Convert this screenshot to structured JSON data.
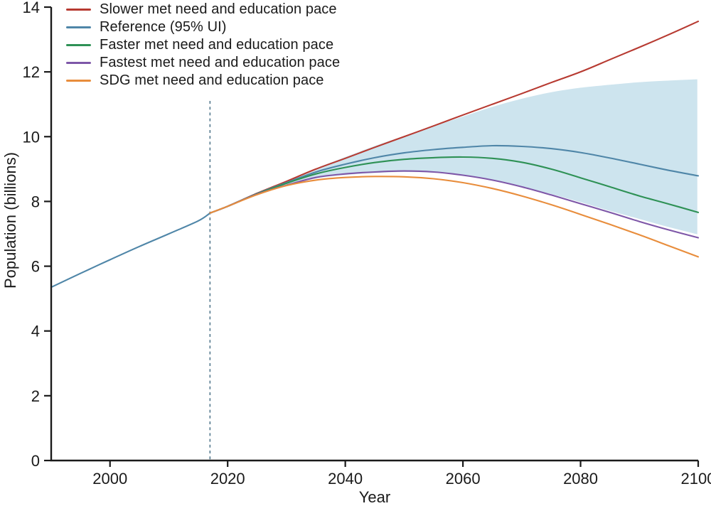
{
  "chart_data": {
    "type": "line",
    "title": "",
    "xlabel": "Year",
    "ylabel": "Population (billions)",
    "xlim": [
      1990,
      2100
    ],
    "ylim": [
      0,
      14
    ],
    "xticks": [
      2000,
      2020,
      2040,
      2060,
      2080,
      2100
    ],
    "yticks": [
      0,
      2,
      4,
      6,
      8,
      10,
      12,
      14
    ],
    "grid": false,
    "legend_position": "top-left",
    "axis_color": "#1a1a1a",
    "forecast_divider": {
      "year": 2017,
      "style": "dashed",
      "color": "#5b7e92"
    },
    "historical": {
      "color": "#4f86a8",
      "x": [
        1990,
        1995,
        2000,
        2005,
        2010,
        2015,
        2017
      ],
      "values": [
        5.35,
        5.78,
        6.2,
        6.61,
        7.0,
        7.4,
        7.64
      ]
    },
    "forecast_x": [
      2017,
      2020,
      2025,
      2030,
      2035,
      2040,
      2045,
      2050,
      2055,
      2060,
      2065,
      2070,
      2075,
      2080,
      2085,
      2090,
      2095,
      2100
    ],
    "uncertainty_band": {
      "label": "95% UI",
      "color": "#cde4ee",
      "upper": [
        7.64,
        7.86,
        8.27,
        8.66,
        9.05,
        9.4,
        9.74,
        10.05,
        10.35,
        10.65,
        10.95,
        11.2,
        11.4,
        11.54,
        11.63,
        11.71,
        11.76,
        11.8
      ],
      "lower": [
        7.64,
        7.84,
        8.18,
        8.46,
        8.68,
        8.79,
        8.85,
        8.88,
        8.86,
        8.78,
        8.63,
        8.42,
        8.2,
        7.95,
        7.68,
        7.43,
        7.18,
        6.95
      ]
    },
    "series": [
      {
        "name": "Slower met need and education pace",
        "color": "#b73a31",
        "values": [
          7.64,
          7.85,
          8.25,
          8.62,
          9.0,
          9.33,
          9.67,
          10.0,
          10.33,
          10.67,
          11.0,
          11.33,
          11.67,
          12.0,
          12.38,
          12.76,
          13.15,
          13.56
        ]
      },
      {
        "name": "Reference (95% UI)",
        "color": "#4f86a8",
        "values": [
          7.64,
          7.85,
          8.24,
          8.58,
          8.91,
          9.15,
          9.35,
          9.5,
          9.6,
          9.67,
          9.72,
          9.7,
          9.63,
          9.51,
          9.34,
          9.15,
          8.96,
          8.79
        ]
      },
      {
        "name": "Faster met need and education pace",
        "color": "#2e9155",
        "values": [
          7.64,
          7.85,
          8.23,
          8.56,
          8.85,
          9.05,
          9.2,
          9.3,
          9.35,
          9.37,
          9.33,
          9.21,
          9.0,
          8.73,
          8.45,
          8.17,
          7.92,
          7.66
        ]
      },
      {
        "name": "Fastest met need and education pace",
        "color": "#7e57a8",
        "values": [
          7.64,
          7.85,
          8.22,
          8.5,
          8.74,
          8.85,
          8.91,
          8.94,
          8.91,
          8.81,
          8.66,
          8.45,
          8.2,
          7.93,
          7.66,
          7.38,
          7.12,
          6.88
        ]
      },
      {
        "name": "SDG met need and education pace",
        "color": "#e88d3c",
        "values": [
          7.64,
          7.85,
          8.21,
          8.49,
          8.66,
          8.74,
          8.77,
          8.76,
          8.7,
          8.58,
          8.4,
          8.17,
          7.9,
          7.6,
          7.29,
          6.97,
          6.63,
          6.29
        ]
      }
    ]
  }
}
